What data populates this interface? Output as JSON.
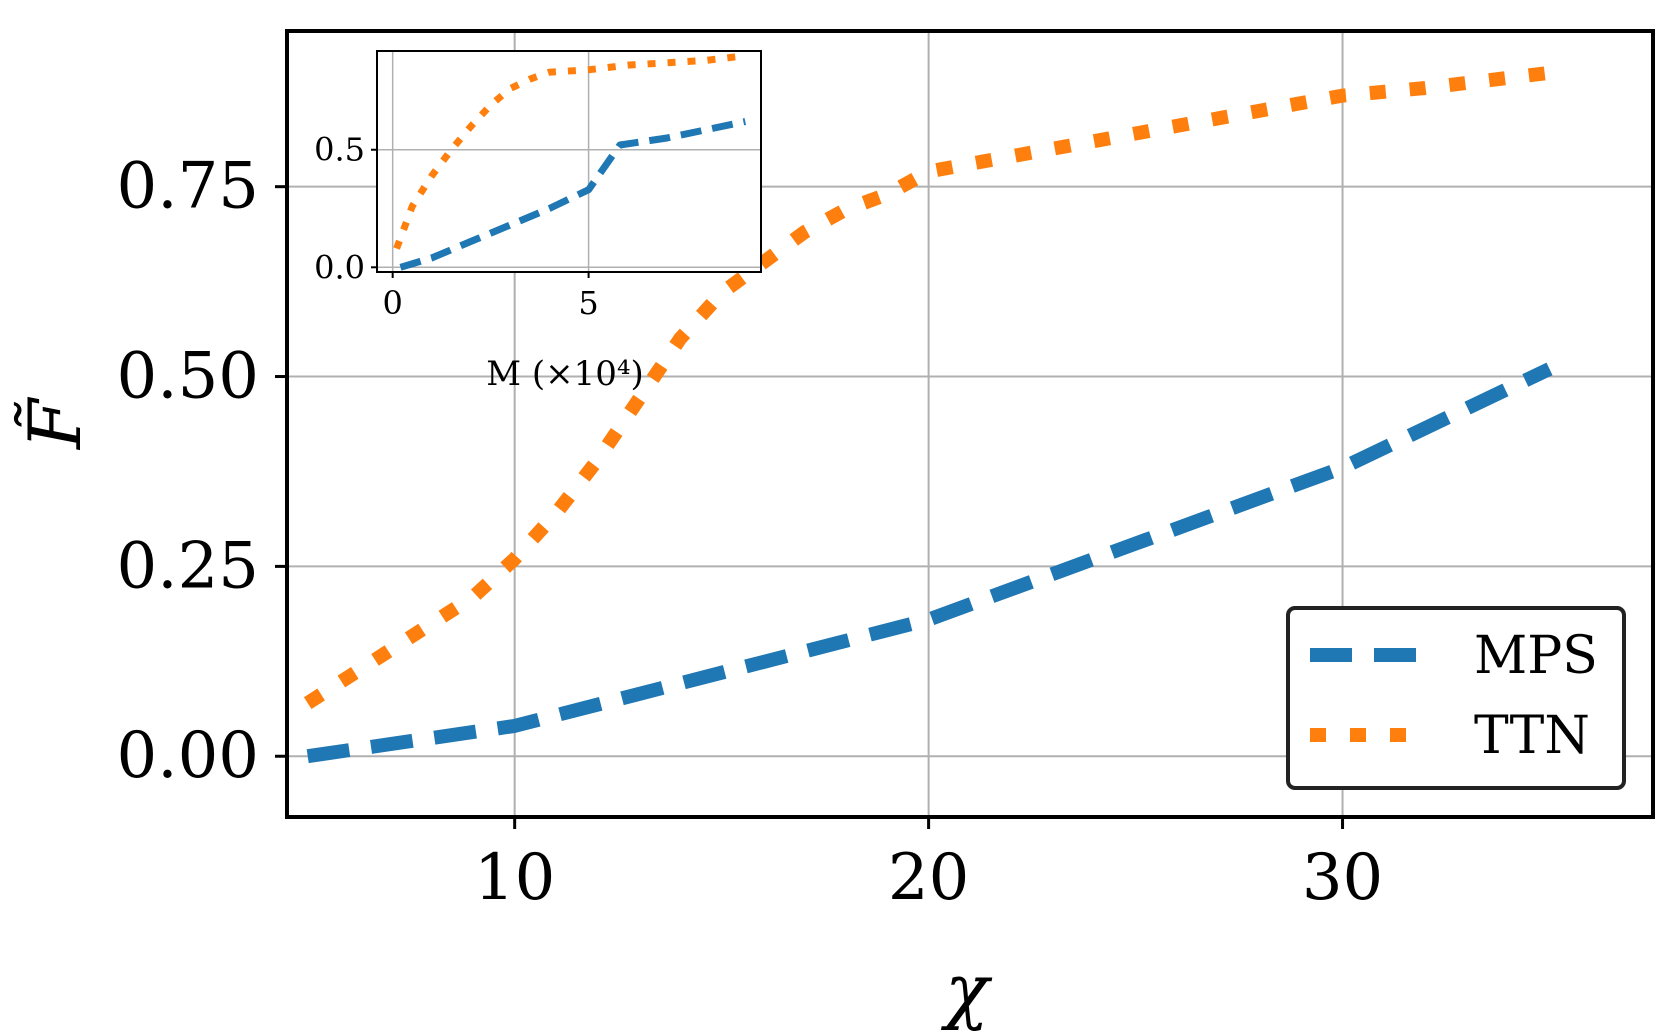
{
  "chart_data": [
    {
      "type": "line",
      "xlabel": "χ",
      "ylabel": "F̃",
      "xlim": [
        4.5,
        37.5
      ],
      "ylim": [
        -0.08,
        0.955
      ],
      "xticks": [
        10,
        20,
        30
      ],
      "xtick_labels": [
        "10",
        "20",
        "30"
      ],
      "yticks": [
        0.0,
        0.25,
        0.5,
        0.75
      ],
      "ytick_labels": [
        "0.00",
        "0.25",
        "0.50",
        "0.75"
      ],
      "grid": true,
      "legend_position": "bottom-right",
      "series": [
        {
          "name": "MPS",
          "color": "#1f77b4",
          "style": "dashed",
          "x": [
            5,
            10,
            15,
            20,
            25,
            30,
            35
          ],
          "y": [
            0.0,
            0.04,
            0.11,
            0.18,
            0.28,
            0.38,
            0.51
          ]
        },
        {
          "name": "TTN",
          "color": "#ff7f0e",
          "style": "dotted",
          "x": [
            5,
            7,
            9,
            10,
            11,
            12,
            13,
            14,
            15,
            16,
            17,
            18,
            19,
            20,
            22,
            24,
            26,
            28,
            30,
            32,
            35
          ],
          "y": [
            0.07,
            0.14,
            0.21,
            0.26,
            0.32,
            0.39,
            0.47,
            0.55,
            0.61,
            0.65,
            0.69,
            0.72,
            0.74,
            0.77,
            0.79,
            0.81,
            0.83,
            0.85,
            0.87,
            0.88,
            0.9
          ]
        }
      ]
    },
    {
      "type": "line",
      "inset": true,
      "xlabel": "M (×10⁴)",
      "xlim": [
        -0.4,
        9.4
      ],
      "ylim": [
        -0.02,
        0.92
      ],
      "xticks": [
        0,
        5
      ],
      "xtick_labels": [
        "0",
        "5"
      ],
      "yticks": [
        0.0,
        0.5
      ],
      "ytick_labels": [
        "0.0",
        "0.5"
      ],
      "grid": true,
      "series": [
        {
          "name": "MPS",
          "color": "#1f77b4",
          "style": "dashed",
          "x": [
            0.2,
            1,
            2,
            3,
            4,
            5,
            5.8,
            7,
            9
          ],
          "y": [
            0.0,
            0.04,
            0.11,
            0.18,
            0.25,
            0.33,
            0.52,
            0.55,
            0.62
          ]
        },
        {
          "name": "TTN",
          "color": "#ff7f0e",
          "style": "dotted",
          "x": [
            0.1,
            0.5,
            1,
            1.5,
            2,
            2.5,
            3,
            3.5,
            4,
            5,
            6,
            7,
            8,
            9
          ],
          "y": [
            0.08,
            0.26,
            0.39,
            0.5,
            0.6,
            0.69,
            0.76,
            0.8,
            0.83,
            0.84,
            0.86,
            0.87,
            0.88,
            0.9
          ]
        }
      ]
    }
  ]
}
